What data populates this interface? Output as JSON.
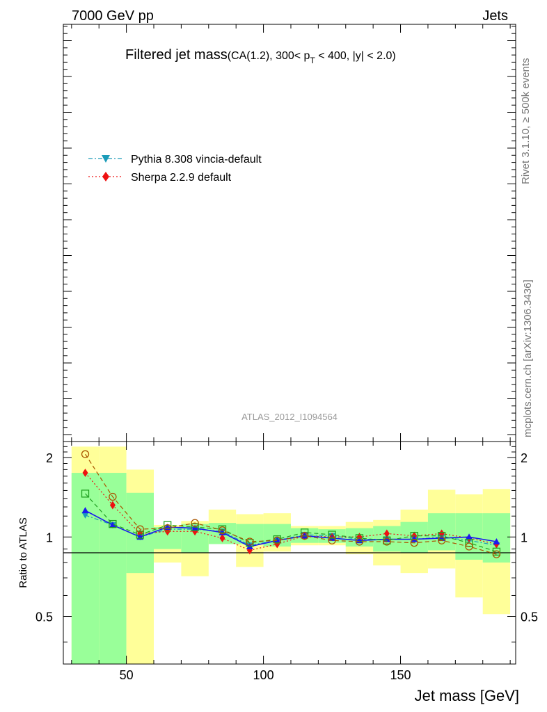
{
  "header": {
    "left": "7000 GeV pp",
    "right": "Jets"
  },
  "title": {
    "main": "Filtered jet mass",
    "detail": "(CA(1.2), 300< p",
    "detail_sub": "T",
    "detail_end": " < 400, |y| < 2.0)"
  },
  "side_labels": {
    "rivet": "Rivet 3.1.10, ≥ 500k events",
    "site": "mcplots.cern.ch [arXiv:1306.3436]"
  },
  "analysis_id": "ATLAS_2012_I1094564",
  "legend": [
    {
      "label": "Pythia 8.308 vincia-default",
      "color": "#1a9bb8",
      "marker": "triangle-down",
      "dash": "dashdot"
    },
    {
      "label": "Sherpa 2.2.9 default",
      "color": "#ee1111",
      "marker": "diamond",
      "dash": "dotted"
    }
  ],
  "colors": {
    "band_inner": "#99ff99",
    "band_outer": "#ffff99",
    "blue": "#1a1aee",
    "cyan": "#1a9bb8",
    "red": "#ee1111",
    "green": "#22a022",
    "brown": "#aa5500"
  },
  "chart_data": {
    "type": "line",
    "xlabel": "Jet mass [GeV]",
    "ylabel": "Ratio to ATLAS",
    "xlim": [
      27,
      192
    ],
    "ylim": [
      0.33,
      2.3
    ],
    "y_scale": "log",
    "x_ticks": [
      50,
      100,
      150
    ],
    "y_ticks": [
      0.5,
      1,
      2
    ],
    "bins": [
      30,
      40,
      50,
      60,
      70,
      80,
      90,
      100,
      110,
      120,
      130,
      140,
      150,
      160,
      170,
      180,
      190
    ],
    "x": [
      35,
      45,
      55,
      65,
      75,
      85,
      95,
      105,
      115,
      125,
      135,
      145,
      155,
      165,
      175,
      185
    ],
    "bands": {
      "inner_low": [
        0.33,
        0.33,
        0.73,
        0.9,
        0.87,
        0.94,
        0.94,
        0.92,
        0.95,
        0.95,
        0.92,
        0.88,
        0.87,
        0.89,
        0.82,
        0.8
      ],
      "inner_high": [
        1.75,
        1.75,
        1.47,
        1.09,
        1.12,
        1.13,
        1.12,
        1.12,
        1.08,
        1.07,
        1.08,
        1.1,
        1.14,
        1.23,
        1.23,
        1.23
      ],
      "outer_low": [
        0.33,
        0.33,
        0.33,
        0.8,
        0.71,
        0.94,
        0.77,
        0.88,
        0.93,
        0.93,
        0.86,
        0.78,
        0.73,
        0.76,
        0.59,
        0.51
      ],
      "outer_high": [
        2.2,
        2.2,
        1.8,
        1.11,
        1.15,
        1.27,
        1.22,
        1.23,
        1.1,
        1.1,
        1.14,
        1.16,
        1.27,
        1.51,
        1.45,
        1.52
      ]
    },
    "series": [
      {
        "name": "Pythia 8.308 vincia-default",
        "color": "#1a9bb8",
        "marker": "triangle-down",
        "dash": "6,3,2,3",
        "values": [
          1.21,
          1.11,
          1.0,
          1.07,
          1.07,
          1.05,
          0.93,
          0.97,
          1.02,
          1.01,
          0.98,
          0.98,
          0.98,
          1.0,
          0.97,
          0.93
        ]
      },
      {
        "name": "Sherpa 2.2.9 default",
        "color": "#ee1111",
        "marker": "diamond",
        "dash": "2,3",
        "values": [
          1.75,
          1.32,
          1.03,
          1.05,
          1.05,
          0.99,
          0.89,
          0.94,
          1.01,
          1.0,
          1.0,
          1.03,
          1.01,
          1.03,
          0.99,
          0.94
        ]
      },
      {
        "color": "#1a1aee",
        "marker": "triangle-up",
        "dash": "",
        "values": [
          1.26,
          1.11,
          1.0,
          1.09,
          1.08,
          1.04,
          0.92,
          0.97,
          1.01,
          0.99,
          0.97,
          0.98,
          0.98,
          0.99,
          1.0,
          0.96
        ]
      },
      {
        "color": "#22a022",
        "marker": "square-open",
        "dash": "6,4",
        "values": [
          1.46,
          1.12,
          1.02,
          1.11,
          1.09,
          1.07,
          0.95,
          0.98,
          1.04,
          1.02,
          0.99,
          0.97,
          1.01,
          1.01,
          0.95,
          0.88
        ]
      },
      {
        "color": "#aa5500",
        "marker": "circle-open",
        "dash": "6,4",
        "values": [
          2.06,
          1.42,
          1.07,
          1.08,
          1.13,
          1.06,
          0.96,
          0.97,
          1.01,
          0.97,
          0.96,
          0.96,
          0.95,
          0.97,
          0.92,
          0.86
        ]
      }
    ]
  }
}
